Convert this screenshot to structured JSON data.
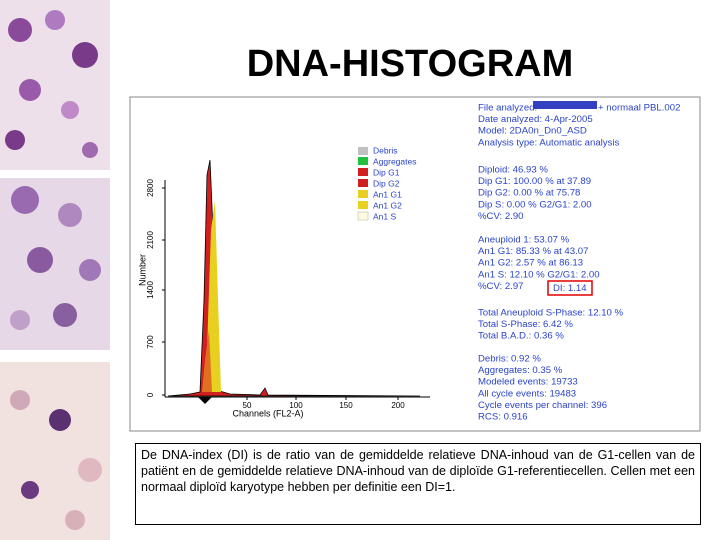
{
  "title": "DNA-HISTOGRAM",
  "histogram": {
    "y_label": "Number",
    "y_ticks": [
      "0",
      "700",
      "1400",
      "2100",
      "2800"
    ],
    "x_ticks": [
      "50",
      "100",
      "150",
      "200"
    ],
    "x_label": "Channels (FL2-A)"
  },
  "legend": [
    "Debris",
    "Aggregates",
    "Dip G1",
    "Dip G2",
    "An1 G1",
    "An1 G2",
    "An1 S"
  ],
  "report": {
    "file_label": "File analyzed:",
    "file_name": "+ normaal PBL.002",
    "header": [
      "Date analyzed: 4-Apr-2005",
      "Model: 2DA0n_Dn0_ASD",
      "Analysis type: Automatic analysis"
    ],
    "diploid": [
      "Diploid: 46.93 %",
      "Dip G1: 100.00 % at 37.89",
      "Dip G2: 0.00 % at 75.78",
      "Dip S: 0.00 %    G2/G1: 2.00",
      "%CV: 2.90"
    ],
    "aneuploid": [
      "Aneuploid 1: 53.07 %",
      "An1 G1: 85.33 % at 43.07",
      "An1 G2: 2.57 % at 86.13",
      "An1 S: 12.10 %    G2/G1: 2.00",
      "%CV: 2.97"
    ],
    "di": "DI: 1.14",
    "totals": [
      "Total Aneuploid S-Phase: 12.10 %",
      "Total S-Phase: 6.42 %",
      "Total B.A.D.: 0.36 %"
    ],
    "events": [
      "Debris: 0.92 %",
      "Aggregates: 0.35 %",
      "Modeled events: 19733",
      "All cycle events: 19483",
      "Cycle events per channel: 396",
      "RCS: 0.916"
    ]
  },
  "caption": "De DNA-index (DI) is de ratio van de gemiddelde relatieve DNA-inhoud van de G1-cellen van de patiënt en de gemiddelde relatieve DNA-inhoud van de diploïde G1-referentiecellen. Cellen met een normaal diploïd karyotype hebben per definitie een DI=1."
}
